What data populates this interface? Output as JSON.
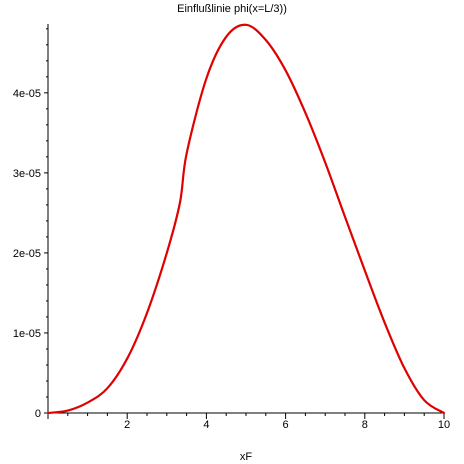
{
  "chart_data": {
    "type": "line",
    "title": "Einflußlinie phi(x=L/3))",
    "xlabel": "xF",
    "ylabel": "",
    "xlim": [
      0,
      10
    ],
    "ylim": [
      0,
      4.86e-05
    ],
    "x_ticks": [
      0,
      2,
      4,
      6,
      8,
      10
    ],
    "x_tick_labels": [
      "",
      "2",
      "4",
      "6",
      "8",
      "10"
    ],
    "y_ticks": [
      0,
      1e-05,
      2e-05,
      3e-05,
      4e-05
    ],
    "y_tick_labels": [
      "0",
      "1e-05",
      "2e-05",
      "3e-05",
      "4e-05"
    ],
    "grid": false,
    "legend": "none",
    "series": [
      {
        "color": "#e00000",
        "x": [
          0,
          0.5,
          1,
          1.5,
          2,
          2.5,
          3,
          3.333,
          3.5,
          4,
          4.5,
          5,
          5.5,
          6,
          6.5,
          7,
          7.5,
          8,
          8.5,
          9,
          9.5,
          10
        ],
        "y": [
          0,
          3e-07,
          1.3e-06,
          3.1e-06,
          6.8e-06,
          1.25e-05,
          2e-05,
          2.63e-05,
          3.24e-05,
          4.18e-05,
          4.7e-05,
          4.85e-05,
          4.66e-05,
          4.28e-05,
          3.75e-05,
          3.13e-05,
          2.45e-05,
          1.78e-05,
          1.13e-05,
          5.6e-06,
          1.6e-06,
          0
        ]
      }
    ]
  }
}
